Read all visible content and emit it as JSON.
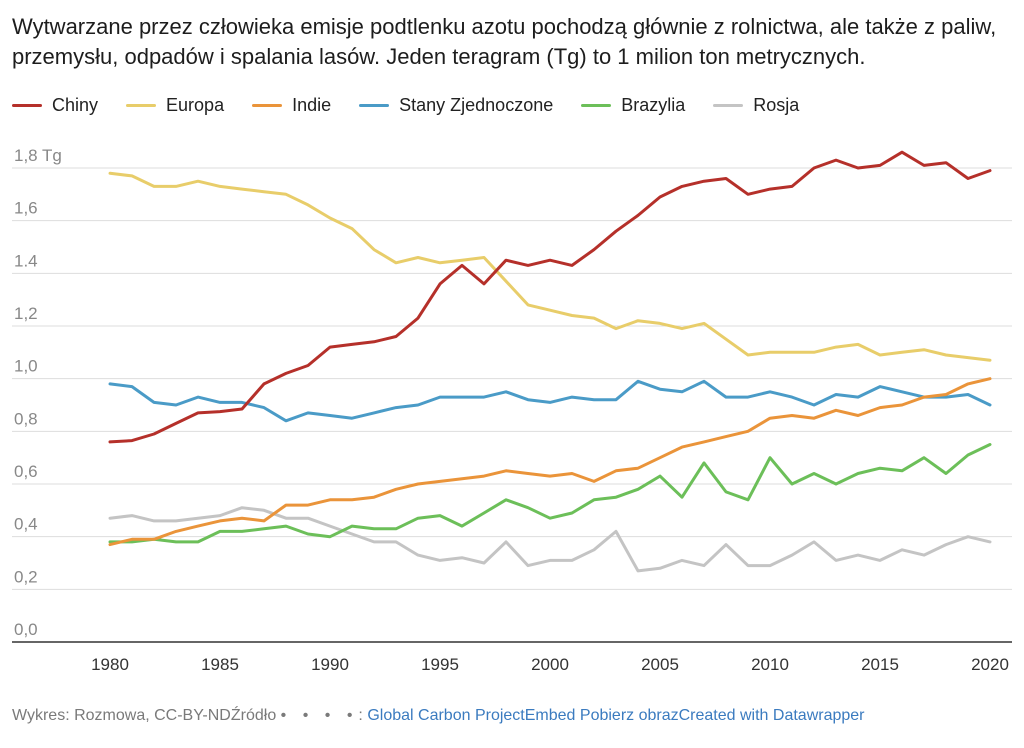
{
  "title": "Wytwarzane przez człowieka emisje podtlenku azotu pochodzą głównie z rolnictwa, ale także z paliw, przemysłu, odpadów i spalania lasów. Jeden teragram (Tg) to 1 milion ton metrycznych.",
  "footer": {
    "credit": "Wykres: Rozmowa, CC-BY-ND",
    "source_label": "Źródło",
    "separator_dots": "• • • •",
    "separator": ":",
    "source_link": "Global Carbon Project",
    "embed_link": "Embed",
    "download_link": "Pobierz obraz",
    "created_text": "Created with",
    "tool_link": "Datawrapper"
  },
  "colors": {
    "Chiny": "#b5302a",
    "Europa": "#e8cd6a",
    "Indie": "#ea943a",
    "Stany Zjednoczone": "#4a9bc7",
    "Brazylia": "#6cbf59",
    "Rosja": "#c4c4c4",
    "grid": "#dddddd",
    "axis": "#333333"
  },
  "chart_data": {
    "type": "line",
    "ylim": [
      0,
      1.8
    ],
    "y_ticks": [
      {
        "value": 0,
        "label": "0,0"
      },
      {
        "value": 0.2,
        "label": "0,2"
      },
      {
        "value": 0.4,
        "label": "0,4"
      },
      {
        "value": 0.6,
        "label": "0,6"
      },
      {
        "value": 0.8,
        "label": "0,8"
      },
      {
        "value": 1.0,
        "label": "1,0"
      },
      {
        "value": 1.2,
        "label": "1,2"
      },
      {
        "value": 1.4,
        "label": "1.4"
      },
      {
        "value": 1.6,
        "label": "1,6"
      },
      {
        "value": 1.8,
        "label": "1,8 Tg"
      }
    ],
    "x_ticks": [
      1980,
      1985,
      1990,
      1995,
      2000,
      2005,
      2010,
      2015,
      2020
    ],
    "xlim": [
      1980,
      2020
    ],
    "grid": true,
    "legend_position": "top-left",
    "x": [
      1980,
      1981,
      1982,
      1983,
      1984,
      1985,
      1986,
      1987,
      1988,
      1989,
      1990,
      1991,
      1992,
      1993,
      1994,
      1995,
      1996,
      1997,
      1998,
      1999,
      2000,
      2001,
      2002,
      2003,
      2004,
      2005,
      2006,
      2007,
      2008,
      2009,
      2010,
      2011,
      2012,
      2013,
      2014,
      2015,
      2016,
      2017,
      2018,
      2019,
      2020
    ],
    "series": [
      {
        "name": "Chiny",
        "values": [
          0.76,
          0.765,
          0.79,
          0.83,
          0.87,
          0.875,
          0.885,
          0.98,
          1.02,
          1.05,
          1.12,
          1.13,
          1.14,
          1.16,
          1.23,
          1.36,
          1.43,
          1.36,
          1.45,
          1.43,
          1.45,
          1.43,
          1.49,
          1.56,
          1.62,
          1.69,
          1.73,
          1.75,
          1.76,
          1.7,
          1.72,
          1.73,
          1.8,
          1.83,
          1.8,
          1.81,
          1.86,
          1.81,
          1.82,
          1.76,
          1.79
        ]
      },
      {
        "name": "Europa",
        "values": [
          1.78,
          1.77,
          1.73,
          1.73,
          1.75,
          1.73,
          1.72,
          1.71,
          1.7,
          1.66,
          1.61,
          1.57,
          1.49,
          1.44,
          1.46,
          1.44,
          1.45,
          1.46,
          1.37,
          1.28,
          1.26,
          1.24,
          1.23,
          1.19,
          1.22,
          1.21,
          1.19,
          1.21,
          1.15,
          1.09,
          1.1,
          1.1,
          1.1,
          1.12,
          1.13,
          1.09,
          1.1,
          1.11,
          1.09,
          1.08,
          1.07
        ]
      },
      {
        "name": "Indie",
        "values": [
          0.37,
          0.39,
          0.39,
          0.42,
          0.44,
          0.46,
          0.47,
          0.46,
          0.52,
          0.52,
          0.54,
          0.54,
          0.55,
          0.58,
          0.6,
          0.61,
          0.62,
          0.63,
          0.65,
          0.64,
          0.63,
          0.64,
          0.61,
          0.65,
          0.66,
          0.7,
          0.74,
          0.76,
          0.78,
          0.8,
          0.85,
          0.86,
          0.85,
          0.88,
          0.86,
          0.89,
          0.9,
          0.93,
          0.94,
          0.98,
          1.0
        ]
      },
      {
        "name": "Stany Zjednoczone",
        "values": [
          0.98,
          0.97,
          0.91,
          0.9,
          0.93,
          0.91,
          0.91,
          0.89,
          0.84,
          0.87,
          0.86,
          0.85,
          0.87,
          0.89,
          0.9,
          0.93,
          0.93,
          0.93,
          0.95,
          0.92,
          0.91,
          0.93,
          0.92,
          0.92,
          0.99,
          0.96,
          0.95,
          0.99,
          0.93,
          0.93,
          0.95,
          0.93,
          0.9,
          0.94,
          0.93,
          0.97,
          0.95,
          0.93,
          0.93,
          0.94,
          0.9
        ]
      },
      {
        "name": "Brazylia",
        "values": [
          0.38,
          0.38,
          0.39,
          0.38,
          0.38,
          0.42,
          0.42,
          0.43,
          0.44,
          0.41,
          0.4,
          0.44,
          0.43,
          0.43,
          0.47,
          0.48,
          0.44,
          0.49,
          0.54,
          0.51,
          0.47,
          0.49,
          0.54,
          0.55,
          0.58,
          0.63,
          0.55,
          0.68,
          0.57,
          0.54,
          0.7,
          0.6,
          0.64,
          0.6,
          0.64,
          0.66,
          0.65,
          0.7,
          0.64,
          0.71,
          0.75
        ]
      },
      {
        "name": "Rosja",
        "values": [
          0.47,
          0.48,
          0.46,
          0.46,
          0.47,
          0.48,
          0.51,
          0.5,
          0.47,
          0.47,
          0.44,
          0.41,
          0.38,
          0.38,
          0.33,
          0.31,
          0.32,
          0.3,
          0.38,
          0.29,
          0.31,
          0.31,
          0.35,
          0.42,
          0.27,
          0.28,
          0.31,
          0.29,
          0.37,
          0.29,
          0.29,
          0.33,
          0.38,
          0.31,
          0.33,
          0.31,
          0.35,
          0.33,
          0.37,
          0.4,
          0.38
        ]
      }
    ]
  }
}
